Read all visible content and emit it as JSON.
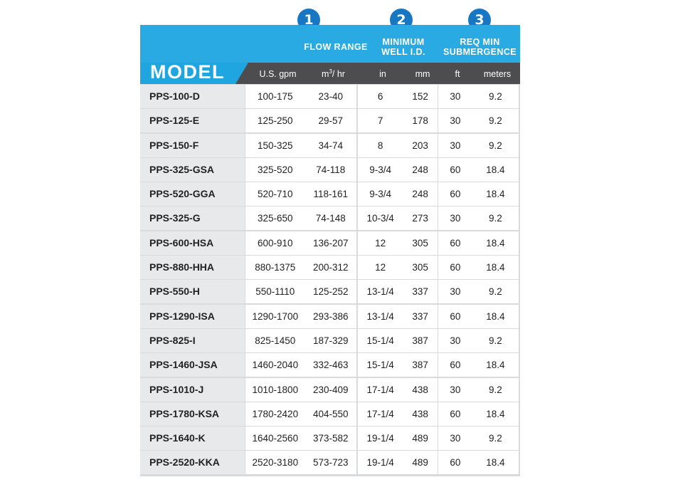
{
  "header": {
    "model_label": "MODEL",
    "groups": [
      {
        "number": "1",
        "title_line1": "FLOW RANGE",
        "title_line2": ""
      },
      {
        "number": "2",
        "title_line1": "MINIMUM",
        "title_line2": "WELL I.D."
      },
      {
        "number": "3",
        "title_line1": "REQ MIN",
        "title_line2": "SUBMERGENCE"
      }
    ],
    "units": [
      "U.S. gpm",
      "m",
      "3",
      "/ hr",
      "in",
      "mm",
      "ft",
      "meters"
    ]
  },
  "rows": [
    [
      "PPS-100-D",
      "100-175",
      "23-40",
      "6",
      "152",
      "30",
      "9.2"
    ],
    [
      "PPS-125-E",
      "125-250",
      "29-57",
      "7",
      "178",
      "30",
      "9.2"
    ],
    [
      "PPS-150-F",
      "150-325",
      "34-74",
      "8",
      "203",
      "30",
      "9.2"
    ],
    [
      "PPS-325-GSA",
      "325-520",
      "74-118",
      "9-3/4",
      "248",
      "60",
      "18.4"
    ],
    [
      "PPS-520-GGA",
      "520-710",
      "118-161",
      "9-3/4",
      "248",
      "60",
      "18.4"
    ],
    [
      "PPS-325-G",
      "325-650",
      "74-148",
      "10-3/4",
      "273",
      "30",
      "9.2"
    ],
    [
      "PPS-600-HSA",
      "600-910",
      "136-207",
      "12",
      "305",
      "60",
      "18.4"
    ],
    [
      "PPS-880-HHA",
      "880-1375",
      "200-312",
      "12",
      "305",
      "60",
      "18.4"
    ],
    [
      "PPS-550-H",
      "550-1110",
      "125-252",
      "13-1/4",
      "337",
      "30",
      "9.2"
    ],
    [
      "PPS-1290-ISA",
      "1290-1700",
      "293-386",
      "13-1/4",
      "337",
      "60",
      "18.4"
    ],
    [
      "PPS-825-I",
      "825-1450",
      "187-329",
      "15-1/4",
      "387",
      "30",
      "9.2"
    ],
    [
      "PPS-1460-JSA",
      "1460-2040",
      "332-463",
      "15-1/4",
      "387",
      "60",
      "18.4"
    ],
    [
      "PPS-1010-J",
      "1010-1800",
      "230-409",
      "17-1/4",
      "438",
      "30",
      "9.2"
    ],
    [
      "PPS-1780-KSA",
      "1780-2420",
      "404-550",
      "17-1/4",
      "438",
      "60",
      "18.4"
    ],
    [
      "PPS-1640-K",
      "1640-2560",
      "373-582",
      "19-1/4",
      "489",
      "30",
      "9.2"
    ],
    [
      "PPS-2520-KKA",
      "2520-3180",
      "573-723",
      "19-1/4",
      "489",
      "60",
      "18.4"
    ]
  ]
}
